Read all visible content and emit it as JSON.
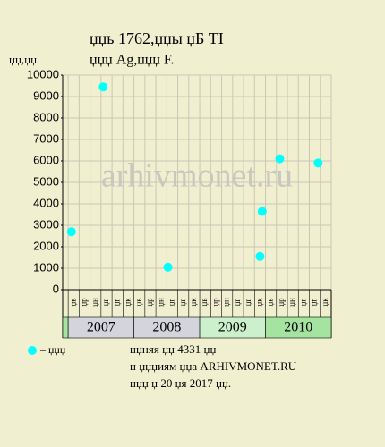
{
  "chart_data": {
    "type": "scatter",
    "title": "џџь 1762,џџы џБ TI",
    "subtitle": "џџџ Ag,џџџ F.",
    "y_label": "џџ,џџ",
    "watermark": "arhivmonet.ru",
    "categories": [
      "џв",
      "џр",
      "џн",
      "џг",
      "џг",
      "џк",
      "џв",
      "џр",
      "џн",
      "џг",
      "џг",
      "џк",
      "џв",
      "џр",
      "џн",
      "џг",
      "џг",
      "џк",
      "џв",
      "џр",
      "џн",
      "џг",
      "џг",
      "џк"
    ],
    "years": [
      {
        "label": "2007",
        "color": "#d4d4dc"
      },
      {
        "label": "2008",
        "color": "#d4d4dc"
      },
      {
        "label": "2009",
        "color": "#ccf0cc"
      },
      {
        "label": "2010",
        "color": "#a4e4a0"
      }
    ],
    "series": [
      {
        "name": "– џџџ",
        "color": "#00ffff",
        "x": [
          0.3,
          3.2,
          9.1,
          17.5,
          17.7,
          19.3,
          22.8
        ],
        "values": [
          2700,
          9450,
          1050,
          1550,
          3650,
          6100,
          5900
        ]
      }
    ],
    "xlim": [
      -0.5,
      24
    ],
    "ylim": [
      0,
      10000
    ],
    "yticks": [
      0,
      1000,
      2000,
      3000,
      4000,
      5000,
      6000,
      7000,
      8000,
      9000,
      10000
    ],
    "grid": true,
    "notes": [
      "џџняя џџ 4331 џџ",
      "џ џџџиям џџа ARHIVMONET.RU",
      "џџџ џ 20 џя 2017 џџ."
    ]
  }
}
